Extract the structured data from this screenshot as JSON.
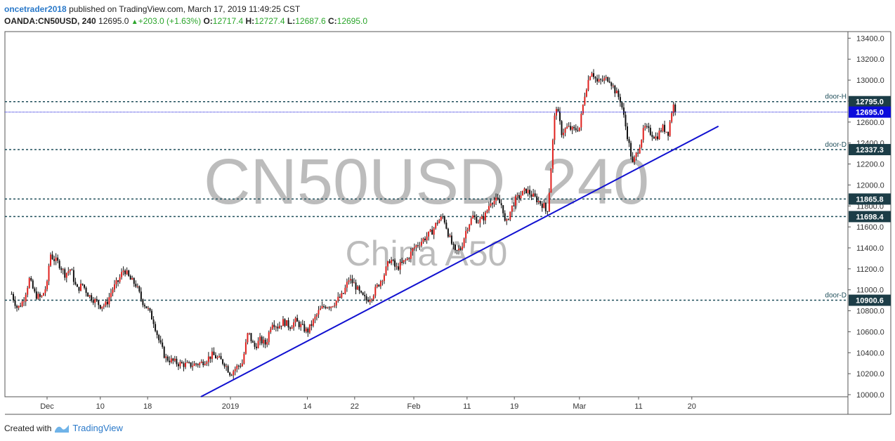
{
  "header": {
    "username": "oncetrader2018",
    "published_text": "published on TradingView.com, March 17, 2019 11:49:25 CST",
    "symbol": "OANDA:CN50USD, 240",
    "last": "12695.0",
    "change": "+203.0 (+1.63%)",
    "o_label": "O:",
    "open": "12717.4",
    "h_label": "H:",
    "high": "12727.4",
    "l_label": "L:",
    "low": "12687.6",
    "c_label": "C:",
    "close": "12695.0"
  },
  "watermark": {
    "symbol": "CN50USD, 240",
    "name": "China A50"
  },
  "footer": {
    "created_with": "Created with",
    "brand": "TradingView",
    "logo_icon": "tradingview-logo-icon"
  },
  "colors": {
    "up": "#e0201d",
    "down": "#111111",
    "trendline": "#1010d0",
    "level": "#1f4e5a",
    "current_price": "#0b0bdc",
    "accent": "#2a79c9"
  },
  "chart_data": {
    "type": "candlestick",
    "ylim": [
      10000,
      13400
    ],
    "y_ticks": [
      "10000.0",
      "10200.0",
      "10400.0",
      "10600.0",
      "10800.0",
      "11000.0",
      "11200.0",
      "11400.0",
      "11600.0",
      "11800.0",
      "12000.0",
      "12200.0",
      "12400.0",
      "12600.0",
      "12800.0",
      "13000.0",
      "13200.0",
      "13400.0"
    ],
    "x_labels": [
      {
        "label": "Dec",
        "day": 0
      },
      {
        "label": "10",
        "day": 9
      },
      {
        "label": "18",
        "day": 17
      },
      {
        "label": "2019",
        "day": 31
      },
      {
        "label": "14",
        "day": 44
      },
      {
        "label": "22",
        "day": 52
      },
      {
        "label": "Feb",
        "day": 62
      },
      {
        "label": "11",
        "day": 71
      },
      {
        "label": "19",
        "day": 79
      },
      {
        "label": "Mar",
        "day": 90
      },
      {
        "label": "11",
        "day": 100
      },
      {
        "label": "20",
        "day": 109
      }
    ],
    "levels": [
      {
        "value": 12795.0,
        "label": "12795.0",
        "tag": "door-H"
      },
      {
        "value": 12337.3,
        "label": "12337.3",
        "tag": "door-D"
      },
      {
        "value": 11865.8,
        "label": "11865.8",
        "tag": ""
      },
      {
        "value": 11698.4,
        "label": "11698.4",
        "tag": ""
      },
      {
        "value": 10900.6,
        "label": "10900.6",
        "tag": "door-D"
      }
    ],
    "current_price": {
      "value": 12695.0,
      "label": "12695.0"
    },
    "trendline": {
      "start": {
        "day": 26,
        "value": 9980
      },
      "end": {
        "day": 113.5,
        "value": 12560
      }
    },
    "close_path": [
      {
        "day": -6,
        "value": 10960
      },
      {
        "day": -5,
        "value": 10820
      },
      {
        "day": -4,
        "value": 10900
      },
      {
        "day": -3,
        "value": 11100
      },
      {
        "day": -2,
        "value": 10950
      },
      {
        "day": -1,
        "value": 10920
      },
      {
        "day": 0,
        "value": 11050
      },
      {
        "day": 0.5,
        "value": 11350
      },
      {
        "day": 1,
        "value": 11300
      },
      {
        "day": 2,
        "value": 11250
      },
      {
        "day": 3,
        "value": 11150
      },
      {
        "day": 4,
        "value": 11200
      },
      {
        "day": 5,
        "value": 11000
      },
      {
        "day": 6,
        "value": 11050
      },
      {
        "day": 7,
        "value": 10950
      },
      {
        "day": 8,
        "value": 10900
      },
      {
        "day": 9,
        "value": 10850
      },
      {
        "day": 10,
        "value": 10860
      },
      {
        "day": 11,
        "value": 11000
      },
      {
        "day": 12,
        "value": 11080
      },
      {
        "day": 13,
        "value": 11200
      },
      {
        "day": 14,
        "value": 11100
      },
      {
        "day": 15,
        "value": 11050
      },
      {
        "day": 16,
        "value": 10900
      },
      {
        "day": 17,
        "value": 10820
      },
      {
        "day": 18,
        "value": 10700
      },
      {
        "day": 19,
        "value": 10500
      },
      {
        "day": 20,
        "value": 10350
      },
      {
        "day": 22,
        "value": 10300
      },
      {
        "day": 24,
        "value": 10280
      },
      {
        "day": 26,
        "value": 10300
      },
      {
        "day": 28,
        "value": 10380
      },
      {
        "day": 30,
        "value": 10300
      },
      {
        "day": 31,
        "value": 10200
      },
      {
        "day": 32,
        "value": 10260
      },
      {
        "day": 33,
        "value": 10300
      },
      {
        "day": 34,
        "value": 10600
      },
      {
        "day": 35,
        "value": 10450
      },
      {
        "day": 36,
        "value": 10520
      },
      {
        "day": 37,
        "value": 10480
      },
      {
        "day": 38,
        "value": 10700
      },
      {
        "day": 39,
        "value": 10650
      },
      {
        "day": 40,
        "value": 10700
      },
      {
        "day": 41,
        "value": 10650
      },
      {
        "day": 42,
        "value": 10700
      },
      {
        "day": 43,
        "value": 10650
      },
      {
        "day": 44,
        "value": 10600
      },
      {
        "day": 45,
        "value": 10700
      },
      {
        "day": 46,
        "value": 10800
      },
      {
        "day": 47,
        "value": 10850
      },
      {
        "day": 48,
        "value": 10850
      },
      {
        "day": 49,
        "value": 10900
      },
      {
        "day": 50,
        "value": 10950
      },
      {
        "day": 51,
        "value": 11100
      },
      {
        "day": 52,
        "value": 11050
      },
      {
        "day": 53,
        "value": 10950
      },
      {
        "day": 54,
        "value": 10900
      },
      {
        "day": 55,
        "value": 10950
      },
      {
        "day": 56,
        "value": 11050
      },
      {
        "day": 57,
        "value": 11150
      },
      {
        "day": 58,
        "value": 11300
      },
      {
        "day": 59,
        "value": 11200
      },
      {
        "day": 60,
        "value": 11250
      },
      {
        "day": 61,
        "value": 11300
      },
      {
        "day": 62,
        "value": 11400
      },
      {
        "day": 63,
        "value": 11450
      },
      {
        "day": 64,
        "value": 11500
      },
      {
        "day": 65,
        "value": 11550
      },
      {
        "day": 66,
        "value": 11650
      },
      {
        "day": 67,
        "value": 11700
      },
      {
        "day": 68,
        "value": 11500
      },
      {
        "day": 69,
        "value": 11350
      },
      {
        "day": 70,
        "value": 11400
      },
      {
        "day": 71,
        "value": 11600
      },
      {
        "day": 72,
        "value": 11700
      },
      {
        "day": 73,
        "value": 11650
      },
      {
        "day": 74,
        "value": 11700
      },
      {
        "day": 75,
        "value": 11850
      },
      {
        "day": 76,
        "value": 11850
      },
      {
        "day": 77,
        "value": 11800
      },
      {
        "day": 77.5,
        "value": 11600
      },
      {
        "day": 78,
        "value": 11700
      },
      {
        "day": 79,
        "value": 11850
      },
      {
        "day": 80,
        "value": 11900
      },
      {
        "day": 81,
        "value": 11950
      },
      {
        "day": 82,
        "value": 11900
      },
      {
        "day": 83,
        "value": 11850
      },
      {
        "day": 84,
        "value": 11800
      },
      {
        "day": 84.5,
        "value": 11720
      },
      {
        "day": 85,
        "value": 12000
      },
      {
        "day": 85.6,
        "value": 12500
      },
      {
        "day": 86,
        "value": 12780
      },
      {
        "day": 87,
        "value": 12500
      },
      {
        "day": 88,
        "value": 12550
      },
      {
        "day": 89,
        "value": 12520
      },
      {
        "day": 90,
        "value": 12550
      },
      {
        "day": 91,
        "value": 12900
      },
      {
        "day": 92,
        "value": 13100
      },
      {
        "day": 93,
        "value": 12980
      },
      {
        "day": 94,
        "value": 13000
      },
      {
        "day": 95,
        "value": 13020
      },
      {
        "day": 96,
        "value": 12900
      },
      {
        "day": 97,
        "value": 12800
      },
      {
        "day": 98,
        "value": 12500
      },
      {
        "day": 99,
        "value": 12200
      },
      {
        "day": 100,
        "value": 12350
      },
      {
        "day": 101,
        "value": 12550
      },
      {
        "day": 102,
        "value": 12500
      },
      {
        "day": 103,
        "value": 12450
      },
      {
        "day": 104,
        "value": 12550
      },
      {
        "day": 105,
        "value": 12500
      },
      {
        "day": 105.8,
        "value": 12770
      },
      {
        "day": 106.4,
        "value": 12695
      }
    ]
  }
}
